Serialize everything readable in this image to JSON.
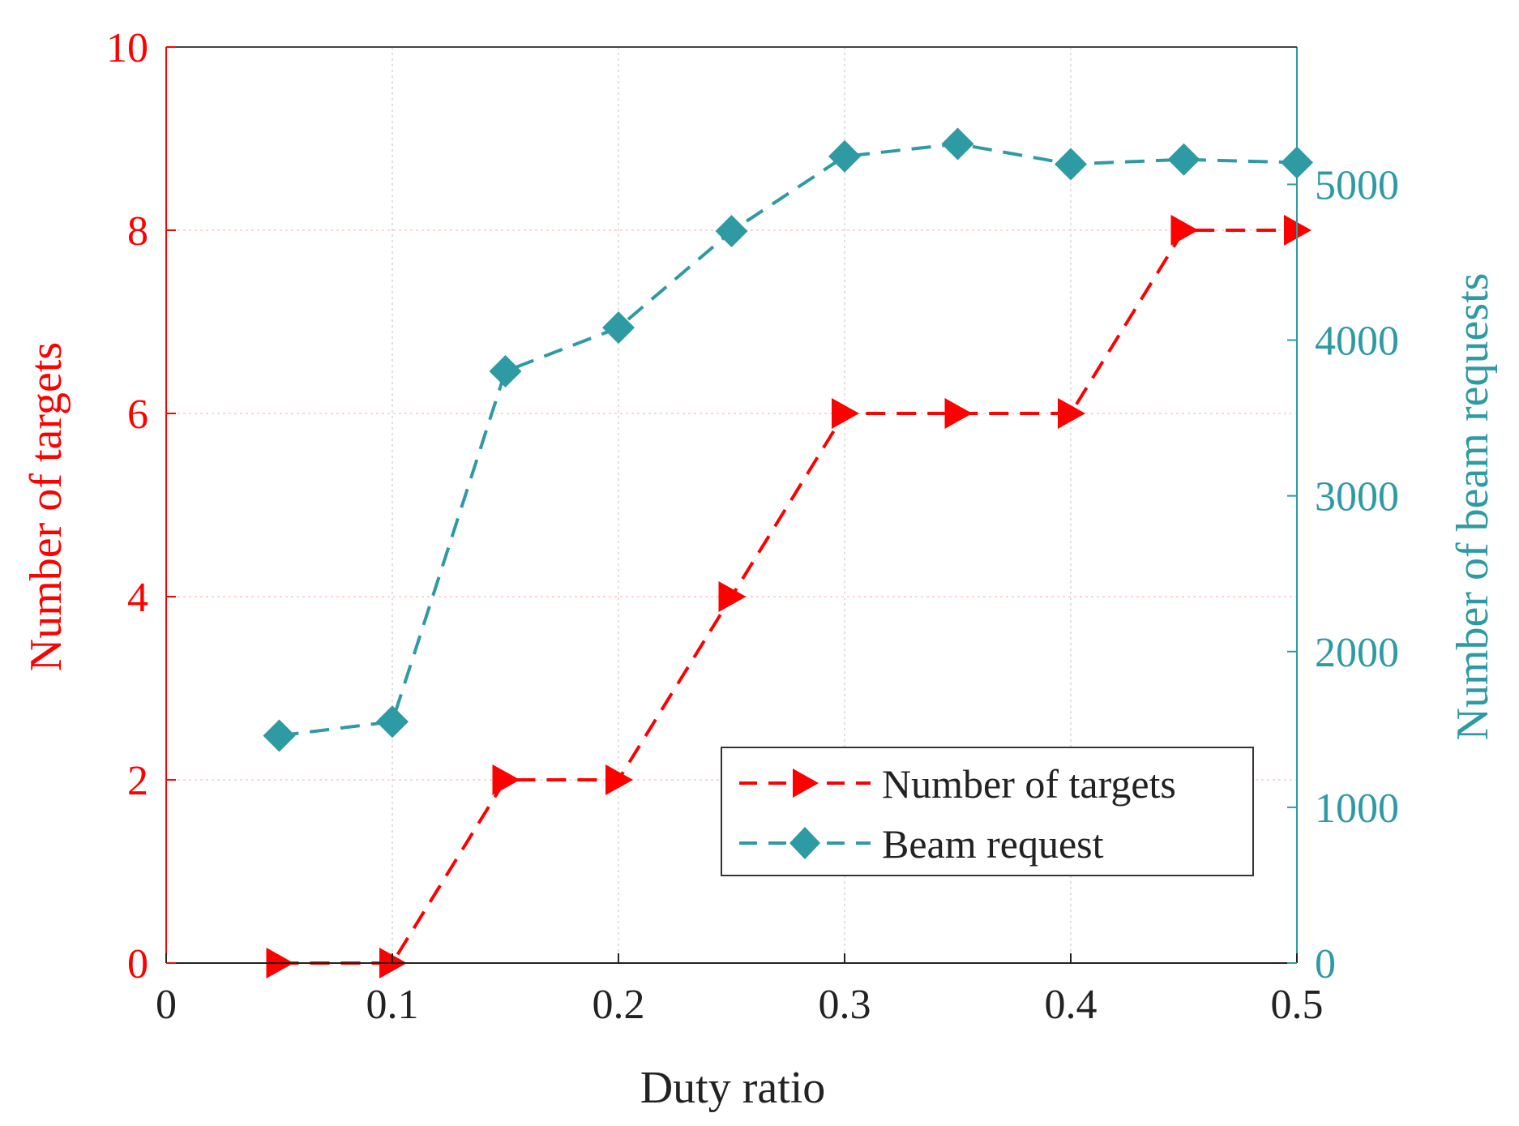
{
  "chart_data": {
    "type": "line",
    "xlabel": "Duty ratio",
    "ylabel_left": "Number of targets",
    "ylabel_right": "Number of beam requests",
    "xlim": [
      0,
      0.5
    ],
    "ylim_left": [
      0,
      10
    ],
    "ylim_right": [
      0,
      5882
    ],
    "x_ticks": [
      "0",
      "0.1",
      "0.2",
      "0.3",
      "0.4",
      "0.5"
    ],
    "y_ticks_left": [
      "0",
      "2",
      "4",
      "6",
      "8",
      "10"
    ],
    "y_ticks_right": [
      "0",
      "1000",
      "2000",
      "3000",
      "4000",
      "5000"
    ],
    "grid": true,
    "legend_position": "lower-right",
    "series": [
      {
        "name": "Number of targets",
        "axis": "left",
        "color": "#ff0000",
        "marker": "triangle-right",
        "x": [
          0.05,
          0.1,
          0.15,
          0.2,
          0.25,
          0.3,
          0.35,
          0.4,
          0.45,
          0.5
        ],
        "values": [
          0,
          0,
          2,
          2,
          4,
          6,
          6,
          6,
          8,
          8
        ]
      },
      {
        "name": "Beam request",
        "axis": "right",
        "color": "#2e9aa3",
        "marker": "diamond",
        "x": [
          0.05,
          0.1,
          0.15,
          0.2,
          0.25,
          0.3,
          0.35,
          0.4,
          0.45,
          0.5
        ],
        "values": [
          1460,
          1550,
          3800,
          4080,
          4700,
          5180,
          5260,
          5130,
          5160,
          5140
        ]
      }
    ]
  }
}
